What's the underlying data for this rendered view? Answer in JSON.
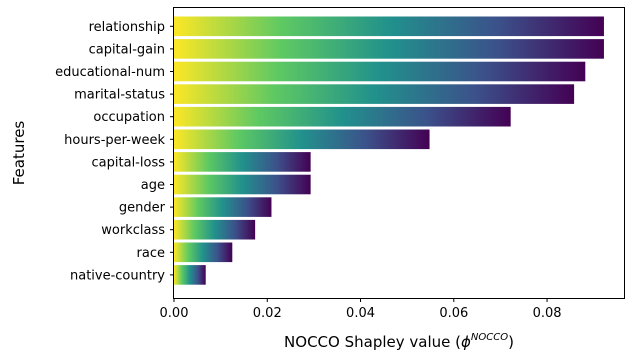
{
  "chart_data": {
    "type": "bar",
    "orientation": "horizontal",
    "categories": [
      "relationship",
      "capital-gain",
      "educational-num",
      "marital-status",
      "occupation",
      "hours-per-week",
      "capital-loss",
      "age",
      "gender",
      "workclass",
      "race",
      "native-country"
    ],
    "values": [
      0.0922,
      0.0922,
      0.0882,
      0.0858,
      0.0722,
      0.0548,
      0.0293,
      0.0293,
      0.0209,
      0.0174,
      0.0125,
      0.0068
    ],
    "xlabel_main": "NOCCO Shapley value (",
    "xlabel_symbol": "ϕ",
    "xlabel_superscript": "NOCCO",
    "xlabel_close": ")",
    "ylabel": "Features",
    "xlim": [
      0.0,
      0.0965
    ],
    "xticks": [
      0.0,
      0.02,
      0.04,
      0.06,
      0.08
    ],
    "xtick_labels": [
      "0.00",
      "0.02",
      "0.04",
      "0.06",
      "0.08"
    ],
    "bar_colormap": "viridis (reversed: yellow at left, purple at right)",
    "colormap_stops": [
      "#fde725",
      "#5ec962",
      "#21918c",
      "#3b528b",
      "#440154"
    ],
    "grid": false,
    "legend": "none"
  }
}
